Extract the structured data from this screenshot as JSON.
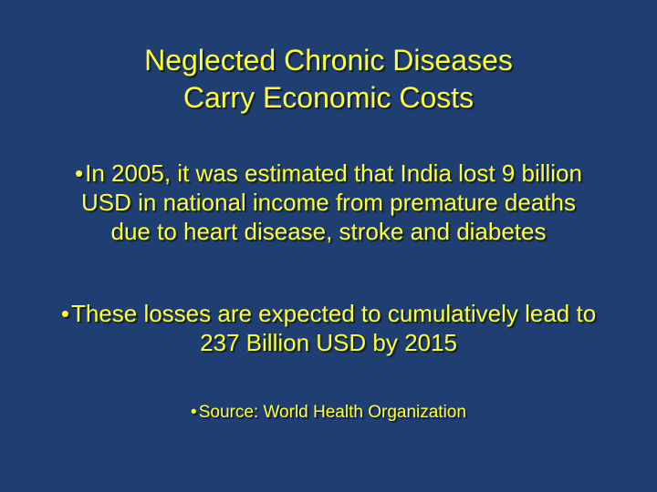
{
  "slide": {
    "title_lines": [
      "Neglected Chronic Diseases",
      "Carry Economic Costs"
    ],
    "bullet_marker": "•",
    "bullets": [
      {
        "lines": [
          "In 2005, it was estimated that India lost 9 billion",
          "USD in national income from premature deaths",
          "due to heart disease, stroke and diabetes"
        ]
      },
      {
        "lines": [
          "These losses are expected to cumulatively lead to",
          "237 Billion USD by 2015"
        ]
      },
      {
        "lines": [
          "Source: World Health Organization"
        ]
      }
    ],
    "colors": {
      "background": "#1f3f73",
      "text": "#ffff33"
    }
  }
}
